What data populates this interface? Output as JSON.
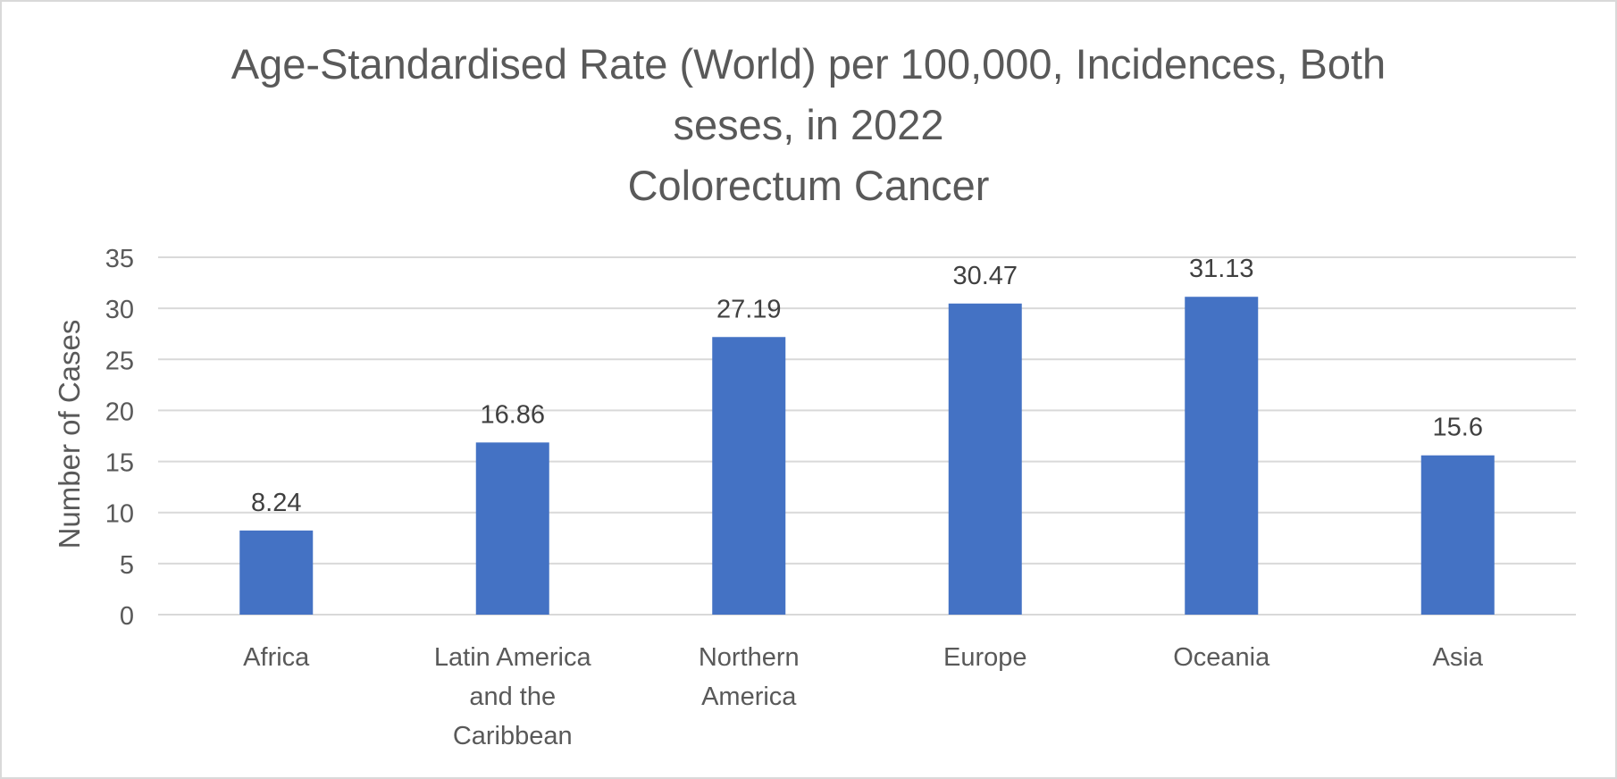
{
  "chart_data": {
    "type": "bar",
    "title_lines": [
      "Age-Standardised Rate (World) per 100,000, Incidences, Both",
      "seses, in 2022",
      "Colorectum Cancer"
    ],
    "ylabel": "Number of Cases",
    "xlabel": "",
    "categories": [
      [
        "Africa"
      ],
      [
        "Latin America",
        "and the",
        "Caribbean"
      ],
      [
        "Northern",
        "America"
      ],
      [
        "Europe"
      ],
      [
        "Oceania"
      ],
      [
        "Asia"
      ]
    ],
    "values": [
      8.24,
      16.86,
      27.19,
      30.47,
      31.13,
      15.6
    ],
    "data_labels": [
      "8.24",
      "16.86",
      "27.19",
      "30.47",
      "31.13",
      "15.6"
    ],
    "ylim": [
      0,
      35
    ],
    "yticks": [
      0,
      5,
      10,
      15,
      20,
      25,
      30,
      35
    ],
    "grid": true,
    "legend": "none",
    "bar_color": "#4472C4",
    "grid_color": "#d9d9d9",
    "text_color": "#595959"
  }
}
